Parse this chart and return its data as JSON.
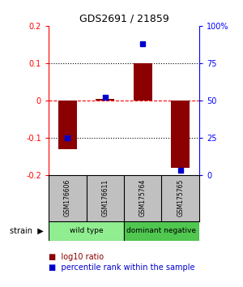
{
  "title": "GDS2691 / 21859",
  "samples": [
    "GSM176606",
    "GSM176611",
    "GSM175764",
    "GSM175765"
  ],
  "log10_ratio": [
    -0.13,
    0.005,
    0.1,
    -0.18
  ],
  "percentile_rank": [
    25,
    52,
    88,
    3
  ],
  "groups": [
    {
      "label": "wild type",
      "color": "#90EE90",
      "span": [
        0,
        2
      ]
    },
    {
      "label": "dominant negative",
      "color": "#50C850",
      "span": [
        2,
        4
      ]
    }
  ],
  "group_row_label": "strain",
  "bar_color": "#8B0000",
  "dot_color": "#0000CD",
  "ylim_left": [
    -0.2,
    0.2
  ],
  "ylim_right": [
    0,
    100
  ],
  "yticks_left": [
    -0.2,
    -0.1,
    0,
    0.1,
    0.2
  ],
  "yticks_right": [
    0,
    25,
    50,
    75,
    100
  ],
  "ytick_labels_right": [
    "0",
    "25",
    "50",
    "75",
    "100%"
  ],
  "hlines": [
    -0.1,
    0,
    0.1
  ],
  "hline_styles": [
    "dotted",
    "dashed",
    "dotted"
  ],
  "hline_colors": [
    "black",
    "red",
    "black"
  ],
  "legend_items": [
    {
      "color": "#8B0000",
      "label": "log10 ratio"
    },
    {
      "color": "#0000CD",
      "label": "percentile rank within the sample"
    }
  ],
  "sample_box_color": "#C0C0C0",
  "fig_width": 3.0,
  "fig_height": 3.54
}
